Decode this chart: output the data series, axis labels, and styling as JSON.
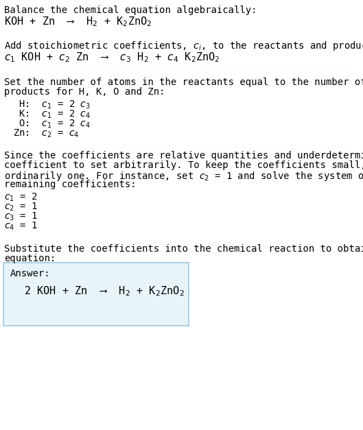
{
  "title_line1": "Balance the chemical equation algebraically:",
  "title_line2": "KOH + Zn  ⟶  H$_2$ + K$_2$ZnO$_2$",
  "section2_header": "Add stoichiometric coefficients, $c_i$, to the reactants and products:",
  "section2_eq": "$c_1$ KOH + $c_2$ Zn  ⟶  $c_3$ H$_2$ + $c_4$ K$_2$ZnO$_2$",
  "section3_header": "Set the number of atoms in the reactants equal to the number of atoms in the\nproducts for H, K, O and Zn:",
  "section3_lines": [
    " H:  $c_1$ = 2 $c_3$",
    " K:  $c_1$ = 2 $c_4$",
    " O:  $c_1$ = 2 $c_4$",
    "Zn:  $c_2$ = $c_4$"
  ],
  "section4_header": "Since the coefficients are relative quantities and underdetermined, choose a\ncoefficient to set arbitrarily. To keep the coefficients small, the arbitrary value is\nordinarily one. For instance, set $c_2$ = 1 and solve the system of equations for the\nremaining coefficients:",
  "section4_lines": [
    "$c_1$ = 2",
    "$c_2$ = 1",
    "$c_3$ = 1",
    "$c_4$ = 1"
  ],
  "section5_header": "Substitute the coefficients into the chemical reaction to obtain the balanced\nequation:",
  "answer_label": "Answer:",
  "answer_eq": "2 KOH + Zn  ⟶  H$_2$ + K$_2$ZnO$_2$",
  "bg_color": "#ffffff",
  "text_color": "#000000",
  "answer_box_color": "#e8f4f8",
  "answer_box_border": "#a0c8e0",
  "font_size": 10,
  "small_font_size": 9
}
